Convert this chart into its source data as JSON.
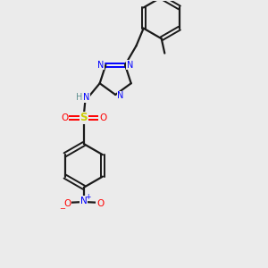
{
  "background_color": "#ebebeb",
  "bond_color": "#1a1a1a",
  "nitrogen_color": "#0000ff",
  "oxygen_color": "#ff0000",
  "sulfur_color": "#cccc00",
  "nh_h_color": "#5f9090",
  "figsize": [
    3.0,
    3.0
  ],
  "dpi": 100,
  "xlim": [
    0,
    10
  ],
  "ylim": [
    0,
    10
  ]
}
